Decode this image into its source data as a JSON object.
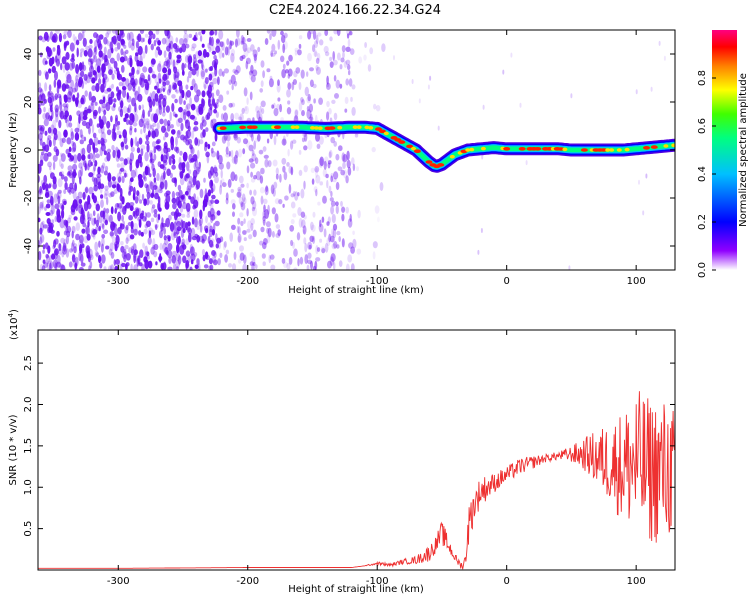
{
  "title": "C2E4.2024.166.22.34.G24",
  "colors": {
    "spectrogram_noise": "#6a0ff0",
    "snr_line": "#ee3030",
    "axis": "#000000"
  },
  "chart_data": [
    {
      "type": "heatmap",
      "panel": "top",
      "xlabel": "Height of straight line (km)",
      "ylabel": "Frequency (Hz)",
      "xlim": [
        -362,
        130
      ],
      "ylim": [
        -50,
        50
      ],
      "xticks": [
        -300,
        -200,
        -100,
        0,
        100
      ],
      "yticks": [
        -40,
        -20,
        0,
        20,
        40
      ],
      "grid": false,
      "colorbar": {
        "label": "Normalized spectral amplitude",
        "range": [
          0,
          1
        ],
        "ticks": [
          "0.0",
          "0.2",
          "0.4",
          "0.6",
          "0.8"
        ],
        "colormap": [
          "#ffffff",
          "#8000ff",
          "#0000ff",
          "#00c0ff",
          "#00ff80",
          "#40ff00",
          "#ffff00",
          "#ff8000",
          "#ff0000",
          "#ff0080"
        ]
      },
      "signal_track": {
        "x": [
          -222,
          -200,
          -180,
          -160,
          -140,
          -120,
          -110,
          -100,
          -90,
          -80,
          -70,
          -60,
          -55,
          -50,
          -45,
          -40,
          -30,
          -20,
          -10,
          0,
          10,
          20,
          30,
          40,
          50,
          60,
          70,
          80,
          90,
          100,
          110,
          120,
          130
        ],
        "y": [
          9,
          9.5,
          9.5,
          9.5,
          9,
          9.5,
          9.5,
          9,
          6,
          3,
          0,
          -5,
          -7,
          -6,
          -4,
          -2,
          0,
          0.5,
          1,
          0.5,
          0.5,
          0.5,
          0.5,
          0.5,
          0,
          0,
          0,
          0,
          0,
          0.5,
          1,
          1.5,
          2
        ]
      },
      "noise_regions": [
        {
          "x": [
            -362,
            -222
          ],
          "density": "high"
        },
        {
          "x": [
            -222,
            -178
          ],
          "density": "medium"
        },
        {
          "x": [
            -178,
            -118
          ],
          "density": "medium"
        },
        {
          "x": [
            -118,
            -95
          ],
          "density": "low"
        }
      ]
    },
    {
      "type": "line",
      "panel": "bottom",
      "xlabel": "Height of straight line (km)",
      "ylabel": "SNR (10 * v/v)",
      "scale_label": "(x10",
      "scale_exponent": "4",
      "scale_suffix": ")",
      "xlim": [
        -362,
        130
      ],
      "ylim": [
        0,
        2.9
      ],
      "xticks": [
        -300,
        -200,
        -100,
        0,
        100
      ],
      "yticks": [
        "0.5",
        "1.0",
        "1.5",
        "2.0",
        "2.5"
      ],
      "grid": false,
      "series": [
        {
          "x": [
            -362,
            -300,
            -200,
            -120,
            -110,
            -100,
            -90,
            -80,
            -70,
            -60,
            -55,
            -50,
            -45,
            -40,
            -35,
            -32,
            -30,
            -25,
            -20,
            -15,
            -10,
            0,
            10,
            20,
            30,
            40,
            50,
            60,
            70,
            80,
            90,
            100,
            110,
            120,
            130
          ],
          "y": [
            0.02,
            0.02,
            0.03,
            0.03,
            0.05,
            0.08,
            0.06,
            0.1,
            0.12,
            0.2,
            0.3,
            0.45,
            0.3,
            0.15,
            0.05,
            0.1,
            0.5,
            0.8,
            0.95,
            1.0,
            1.05,
            1.15,
            1.25,
            1.3,
            1.35,
            1.38,
            1.4,
            1.4,
            1.35,
            1.3,
            1.25,
            1.3,
            1.2,
            1.2,
            1.2
          ],
          "fluctuation": [
            0,
            0,
            0,
            0,
            0,
            0.02,
            0.02,
            0.03,
            0.05,
            0.1,
            0.1,
            0.15,
            0.1,
            0.05,
            0.05,
            0.1,
            0.25,
            0.2,
            0.18,
            0.15,
            0.12,
            0.1,
            0.1,
            0.08,
            0.05,
            0.05,
            0.1,
            0.2,
            0.35,
            0.5,
            0.7,
            0.9,
            0.9,
            0.9,
            0.8
          ]
        }
      ]
    }
  ]
}
